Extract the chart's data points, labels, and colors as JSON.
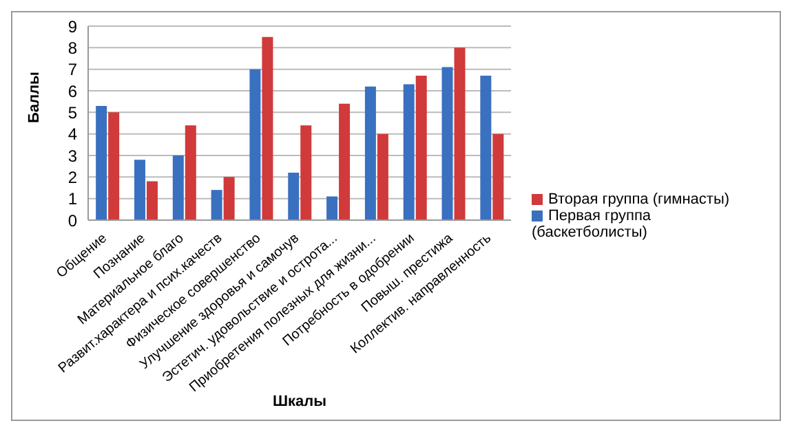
{
  "chart_data": {
    "type": "bar",
    "xlabel": "Шкалы",
    "ylabel": "Баллы",
    "categories": [
      "Общение",
      "Познание",
      "Материальное благо",
      "Развит.характера и псих.качеств",
      "Физическое совершенство",
      "Улучшение здоровья и самочув",
      "Эстетич. удовольствие и острота...",
      "Приобретения полезных для жизни...",
      "Потребность в одобрении",
      "Повыш. престижа",
      "Коллектив. направленность"
    ],
    "series": [
      {
        "name": "Первая группа (баскетболисты)",
        "color": "#3a70c0",
        "values": [
          5.3,
          2.8,
          3.0,
          1.4,
          7.0,
          2.2,
          1.1,
          6.2,
          6.3,
          7.1,
          6.7
        ]
      },
      {
        "name": "Вторая группа (гимнасты)",
        "color": "#d03a3a",
        "values": [
          5.0,
          1.8,
          4.4,
          2.0,
          8.5,
          4.4,
          5.4,
          4.0,
          6.7,
          8.0,
          4.0
        ]
      }
    ],
    "ylim": [
      0,
      9
    ],
    "yticks": [
      0,
      1,
      2,
      3,
      4,
      5,
      6,
      7,
      8,
      9
    ],
    "grid": "y",
    "legend": "right"
  }
}
